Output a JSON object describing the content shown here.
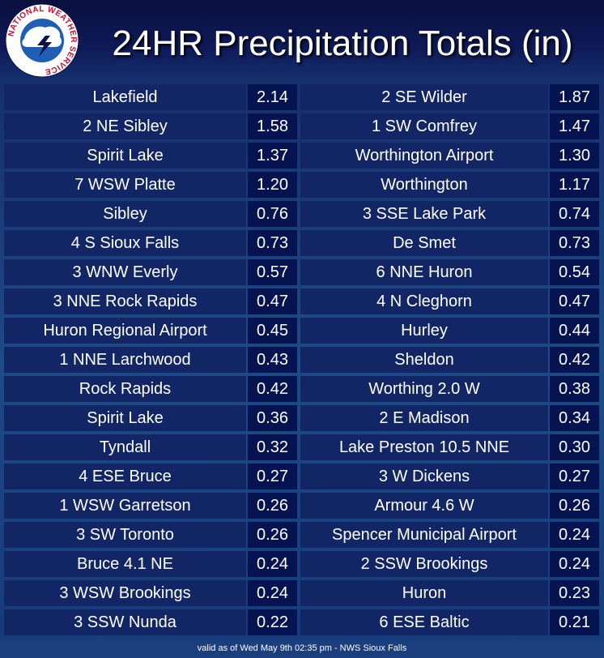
{
  "title": "24HR Precipitation Totals (in)",
  "logo": {
    "ring_text": "NATIONAL WEATHER SERVICE",
    "icon": "nws-logo-icon"
  },
  "rows": [
    [
      {
        "name": "Lakefield",
        "value": "2.14"
      },
      {
        "name": "2 SE Wilder",
        "value": "1.87"
      }
    ],
    [
      {
        "name": "2 NE Sibley",
        "value": "1.58"
      },
      {
        "name": "1 SW Comfrey",
        "value": "1.47"
      }
    ],
    [
      {
        "name": "Spirit Lake",
        "value": "1.37"
      },
      {
        "name": "Worthington Airport",
        "value": "1.30"
      }
    ],
    [
      {
        "name": "7 WSW Platte",
        "value": "1.20"
      },
      {
        "name": "Worthington",
        "value": "1.17"
      }
    ],
    [
      {
        "name": "Sibley",
        "value": "0.76"
      },
      {
        "name": "3 SSE Lake Park",
        "value": "0.74"
      }
    ],
    [
      {
        "name": "4 S Sioux Falls",
        "value": "0.73"
      },
      {
        "name": "De Smet",
        "value": "0.73"
      }
    ],
    [
      {
        "name": "3 WNW Everly",
        "value": "0.57"
      },
      {
        "name": "6 NNE Huron",
        "value": "0.54"
      }
    ],
    [
      {
        "name": "3 NNE Rock Rapids",
        "value": "0.47"
      },
      {
        "name": "4 N Cleghorn",
        "value": "0.47"
      }
    ],
    [
      {
        "name": "Huron Regional Airport",
        "value": "0.45"
      },
      {
        "name": "Hurley",
        "value": "0.44"
      }
    ],
    [
      {
        "name": "1 NNE Larchwood",
        "value": "0.43"
      },
      {
        "name": "Sheldon",
        "value": "0.42"
      }
    ],
    [
      {
        "name": "Rock Rapids",
        "value": "0.42"
      },
      {
        "name": "Worthing 2.0 W",
        "value": "0.38"
      }
    ],
    [
      {
        "name": "Spirit Lake",
        "value": "0.36"
      },
      {
        "name": "2 E Madison",
        "value": "0.34"
      }
    ],
    [
      {
        "name": "Tyndall",
        "value": "0.32"
      },
      {
        "name": "Lake Preston 10.5 NNE",
        "value": "0.30"
      }
    ],
    [
      {
        "name": "4 ESE Bruce",
        "value": "0.27"
      },
      {
        "name": "3 W Dickens",
        "value": "0.27"
      }
    ],
    [
      {
        "name": "1 WSW Garretson",
        "value": "0.26"
      },
      {
        "name": "Armour 4.6 W",
        "value": "0.26"
      }
    ],
    [
      {
        "name": "3 SW Toronto",
        "value": "0.26"
      },
      {
        "name": "Spencer Municipal Airport",
        "value": "0.24"
      }
    ],
    [
      {
        "name": "Bruce 4.1 NE",
        "value": "0.24"
      },
      {
        "name": "2 SSW Brookings",
        "value": "0.24"
      }
    ],
    [
      {
        "name": "3 WSW Brookings",
        "value": "0.24"
      },
      {
        "name": "Huron",
        "value": "0.23"
      }
    ],
    [
      {
        "name": "3 SSW Nunda",
        "value": "0.22"
      },
      {
        "name": "6 ESE Baltic",
        "value": "0.21"
      }
    ]
  ],
  "footer": "valid as of Wed May 9th 02:35 pm - NWS Sioux Falls",
  "colors": {
    "name_cell": "#122564",
    "value_cell": "#061351",
    "text": "#ffffff"
  }
}
